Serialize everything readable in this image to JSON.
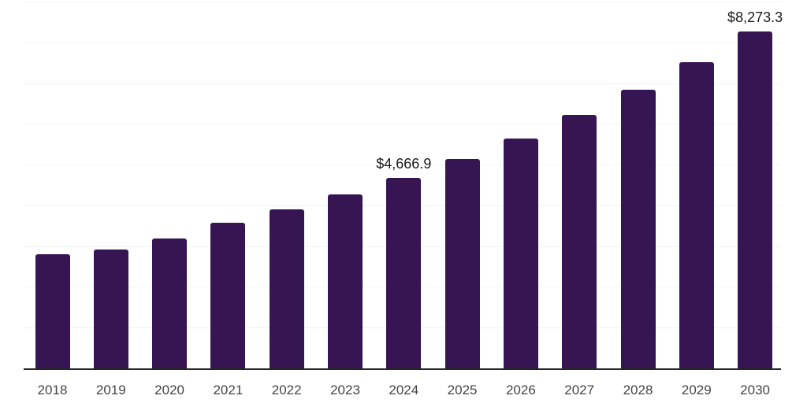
{
  "chart_data": {
    "type": "bar",
    "title": "",
    "xlabel": "",
    "ylabel": "",
    "categories": [
      "2018",
      "2019",
      "2020",
      "2021",
      "2022",
      "2023",
      "2024",
      "2025",
      "2026",
      "2027",
      "2028",
      "2029",
      "2030"
    ],
    "values": [
      2800,
      2920,
      3190,
      3570,
      3900,
      4260,
      4666.9,
      5130,
      5640,
      6210,
      6830,
      7510,
      8273.3
    ],
    "labeled_points": [
      {
        "category": "2024",
        "label": "$4,666.9"
      },
      {
        "category": "2030",
        "label": "$8,273.3"
      }
    ],
    "ylim": [
      0,
      9000
    ],
    "gridline_interval": 1000,
    "grid": "horizontal gridlines, no y-axis tick labels",
    "legend": "none",
    "colors": {
      "bar": "#371452",
      "axis_line": "#262626",
      "gridline": "#f2f2f2",
      "value_label": "#1a1a1a",
      "tick_label": "#444444",
      "background": "#ffffff"
    }
  }
}
